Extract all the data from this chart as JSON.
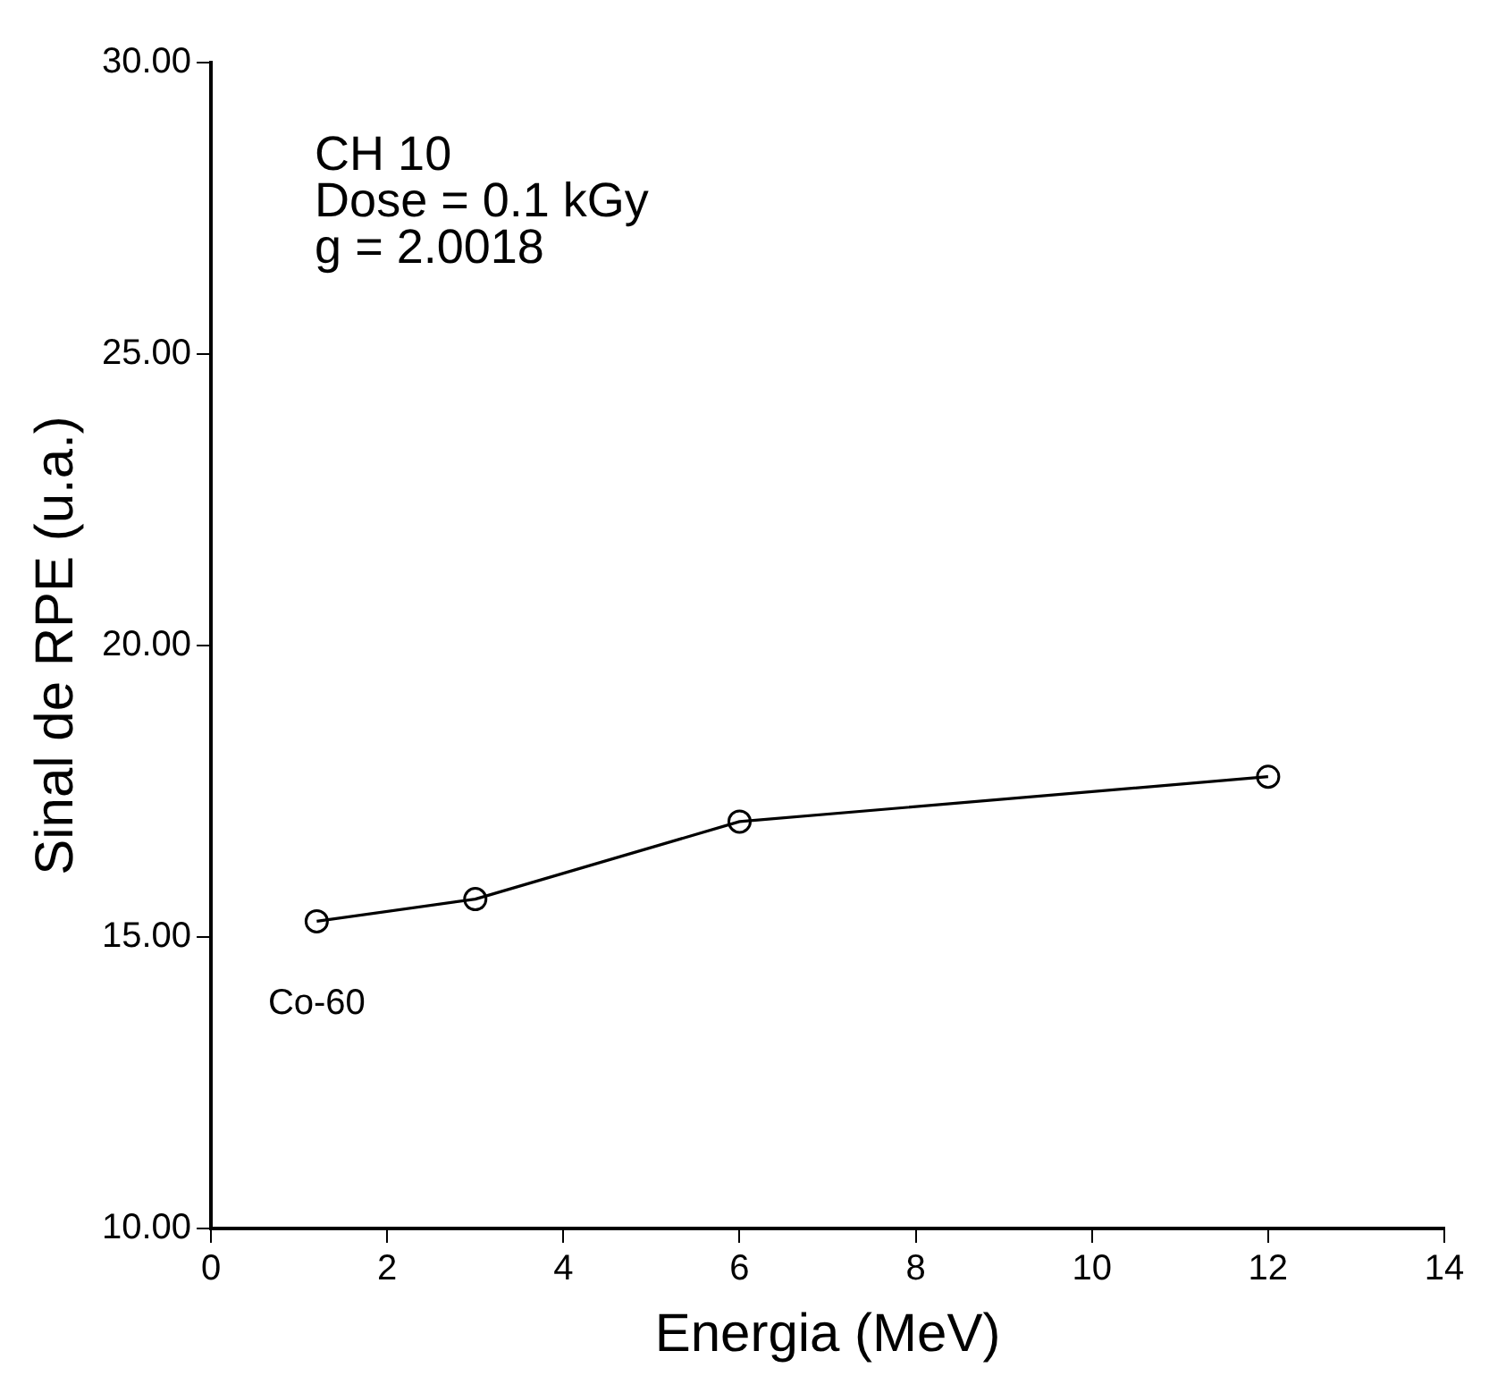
{
  "chart_data": {
    "type": "line",
    "xlabel": "Energia (MeV)",
    "ylabel": "Sinal de RPE (u.a.)",
    "x": [
      1.2,
      3,
      6,
      12
    ],
    "series": [
      {
        "color": "#000000",
        "values": [
          15.27,
          15.65,
          16.98,
          17.75
        ]
      }
    ],
    "xlim": [
      0,
      14
    ],
    "xticks": [
      0,
      2,
      4,
      6,
      8,
      10,
      12,
      14
    ],
    "ylim": [
      10,
      30
    ],
    "yticks": [
      {
        "value": 10,
        "label": "10.00"
      },
      {
        "value": 15,
        "label": "15.00"
      },
      {
        "value": 20,
        "label": "20.00"
      },
      {
        "value": 25,
        "label": "25.00"
      },
      {
        "value": 30,
        "label": "30.00"
      }
    ],
    "marker": "circle",
    "line_style": "solid",
    "grid": false,
    "legend": false,
    "annotations": [
      "CH 10",
      "Dose = 0.1 kGy",
      "g = 2.0018",
      {
        "text": "Co-60",
        "x": 1.2,
        "y": 15.27
      }
    ]
  }
}
